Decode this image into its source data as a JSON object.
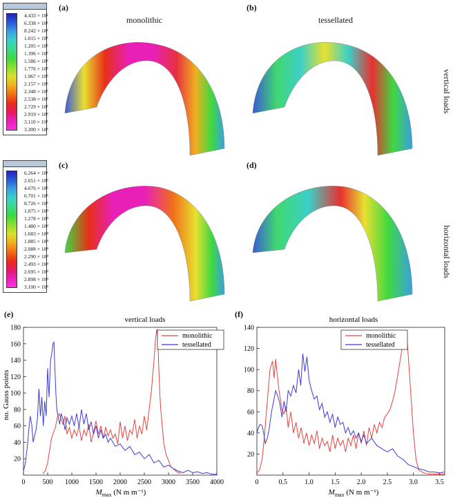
{
  "panels": {
    "a": {
      "letter": "(a)",
      "title": "monolithic"
    },
    "b": {
      "letter": "(b)",
      "title": "tessellated"
    },
    "c": {
      "letter": "(c)"
    },
    "d": {
      "letter": "(d)"
    },
    "e": {
      "letter": "(e)"
    },
    "f": {
      "letter": "(f)"
    }
  },
  "row_labels": {
    "top": "vertical loads",
    "middle": "horizontal loads"
  },
  "colorbar_top": {
    "ticks": [
      "4.433 × 10²",
      "6.338 × 10²",
      "8.242 × 10²",
      "1.015 × 10³",
      "1.205 × 10³",
      "1.396 × 10³",
      "1.586 × 10³",
      "1.776 × 10³",
      "1.967 × 10³",
      "2.157 × 10³",
      "2.348 × 10³",
      "2.538 × 10³",
      "2.729 × 10³",
      "2.919 × 10³",
      "3.110 × 10³",
      "3.300 × 10³"
    ]
  },
  "colorbar_mid": {
    "ticks": [
      "6.264 × 10²",
      "2.651 × 10³",
      "4.676 × 10³",
      "6.701 × 10³",
      "8.726 × 10³",
      "1.075 × 10⁴",
      "1.278 × 10⁴",
      "1.480 × 10⁴",
      "1.683 × 10⁴",
      "1.885 × 10⁴",
      "2.088 × 10⁴",
      "2.290 × 10⁴",
      "2.493 × 10⁴",
      "2.695 × 10⁴",
      "2.898 × 10⁴",
      "3.100 × 10⁴"
    ]
  },
  "colors": {
    "monolithic": "#e8413c",
    "tessellated": "#3a3adb"
  },
  "chart_data": [
    {
      "type": "line",
      "title": "vertical loads",
      "ylabel": "no. Gauss points",
      "xlabel_main": "M",
      "xlabel_sub": "max",
      "xlabel_unit": " (N m m⁻¹)",
      "xlim": [
        0,
        4000
      ],
      "ylim": [
        0,
        180
      ],
      "xticks": [
        0,
        500,
        1000,
        1500,
        2000,
        2500,
        3000,
        3500,
        4000
      ],
      "yticks": [
        20,
        40,
        60,
        80,
        100,
        120,
        140,
        160,
        180
      ],
      "xtick_labels": [
        "0",
        "500",
        "1000",
        "1500",
        "2000",
        "2500",
        "3000",
        "3500",
        "4000"
      ],
      "ytick_labels": [
        "20",
        "40",
        "60",
        "80",
        "100",
        "120",
        "140",
        "160",
        "180"
      ],
      "legend_position": "top-right",
      "series": [
        {
          "name": "monolithic",
          "color": "#e8413c",
          "x": [
            400,
            450,
            500,
            540,
            580,
            620,
            660,
            700,
            740,
            780,
            820,
            860,
            900,
            950,
            1000,
            1050,
            1100,
            1150,
            1200,
            1250,
            1300,
            1350,
            1400,
            1450,
            1500,
            1550,
            1600,
            1650,
            1700,
            1750,
            1800,
            1850,
            1900,
            1950,
            2000,
            2050,
            2100,
            2150,
            2200,
            2250,
            2300,
            2350,
            2400,
            2450,
            2500,
            2550,
            2600,
            2650,
            2700,
            2730,
            2760,
            2780,
            2800,
            2820,
            2840,
            2870,
            2900,
            2950,
            3000,
            3050,
            3100,
            3150,
            3200,
            3250
          ],
          "y": [
            2,
            5,
            15,
            30,
            45,
            52,
            58,
            70,
            75,
            68,
            62,
            72,
            50,
            58,
            45,
            55,
            48,
            60,
            42,
            55,
            48,
            62,
            40,
            52,
            66,
            50,
            60,
            45,
            58,
            48,
            55,
            45,
            50,
            38,
            65,
            45,
            60,
            42,
            55,
            50,
            68,
            45,
            60,
            50,
            72,
            55,
            80,
            105,
            140,
            165,
            178,
            162,
            130,
            100,
            80,
            60,
            40,
            25,
            18,
            10,
            8,
            5,
            3,
            2
          ]
        },
        {
          "name": "tessellated",
          "color": "#3a3adb",
          "x": [
            0,
            40,
            80,
            110,
            140,
            170,
            200,
            230,
            260,
            290,
            320,
            350,
            380,
            410,
            440,
            470,
            500,
            530,
            560,
            590,
            610,
            630,
            650,
            670,
            690,
            720,
            750,
            780,
            820,
            860,
            900,
            950,
            1000,
            1050,
            1100,
            1150,
            1200,
            1250,
            1300,
            1350,
            1400,
            1450,
            1500,
            1550,
            1600,
            1650,
            1700,
            1750,
            1800,
            1900,
            2000,
            2100,
            2200,
            2300,
            2400,
            2500,
            2600,
            2700,
            2800,
            2900,
            3000,
            3100,
            3200,
            3300,
            3400,
            3500,
            3600,
            3700,
            3800,
            3900,
            4000
          ],
          "y": [
            5,
            15,
            35,
            55,
            72,
            62,
            40,
            48,
            55,
            70,
            105,
            72,
            95,
            60,
            90,
            72,
            130,
            95,
            140,
            150,
            160,
            162,
            130,
            100,
            80,
            70,
            62,
            75,
            68,
            55,
            70,
            62,
            72,
            60,
            75,
            58,
            80,
            62,
            75,
            55,
            65,
            50,
            60,
            45,
            55,
            45,
            50,
            40,
            45,
            35,
            38,
            30,
            35,
            25,
            28,
            20,
            25,
            15,
            18,
            10,
            12,
            8,
            5,
            3,
            6,
            3,
            4,
            2,
            3,
            1,
            1
          ]
        }
      ]
    },
    {
      "type": "line",
      "title": "horizontal loads",
      "ylabel": "",
      "xlabel_main": "M",
      "xlabel_sub": "max",
      "xlabel_unit": " (N m m⁻¹)",
      "xlim": [
        0,
        3.6
      ],
      "ylim": [
        0,
        140
      ],
      "xticks": [
        0,
        0.5,
        1.0,
        1.5,
        2.0,
        2.5,
        3.0,
        3.5
      ],
      "yticks": [
        20,
        40,
        60,
        80,
        100,
        120,
        140
      ],
      "xtick_labels": [
        "0",
        "0.5",
        "1.0",
        "1.5",
        "2.0",
        "2.5",
        "3.0",
        "3.5"
      ],
      "ytick_labels": [
        "20",
        "40",
        "60",
        "80",
        "100",
        "120",
        "140"
      ],
      "legend_position": "top-right",
      "series": [
        {
          "name": "monolithic",
          "color": "#e8413c",
          "x": [
            0,
            0.05,
            0.1,
            0.15,
            0.2,
            0.25,
            0.3,
            0.33,
            0.36,
            0.39,
            0.42,
            0.45,
            0.48,
            0.52,
            0.56,
            0.6,
            0.65,
            0.7,
            0.75,
            0.8,
            0.85,
            0.9,
            0.95,
            1.0,
            1.05,
            1.1,
            1.15,
            1.2,
            1.25,
            1.3,
            1.35,
            1.4,
            1.45,
            1.5,
            1.55,
            1.6,
            1.65,
            1.7,
            1.75,
            1.8,
            1.85,
            1.9,
            1.95,
            2.0,
            2.05,
            2.1,
            2.15,
            2.2,
            2.25,
            2.3,
            2.35,
            2.4,
            2.45,
            2.5,
            2.55,
            2.6,
            2.65,
            2.7,
            2.75,
            2.8,
            2.85,
            2.88,
            2.92,
            2.96,
            3.0,
            3.05,
            3.1,
            3.2,
            3.3,
            3.4,
            3.5,
            3.6
          ],
          "y": [
            2,
            5,
            15,
            40,
            70,
            100,
            108,
            92,
            110,
            95,
            82,
            72,
            62,
            58,
            65,
            45,
            60,
            40,
            50,
            35,
            45,
            30,
            40,
            28,
            38,
            30,
            42,
            25,
            35,
            28,
            32,
            22,
            38,
            25,
            35,
            28,
            33,
            22,
            35,
            28,
            38,
            25,
            40,
            30,
            42,
            28,
            45,
            35,
            48,
            40,
            50,
            45,
            55,
            58,
            62,
            70,
            80,
            95,
            110,
            125,
            132,
            128,
            100,
            70,
            40,
            15,
            5,
            2,
            1,
            1,
            1,
            1
          ]
        },
        {
          "name": "tessellated",
          "color": "#3a3adb",
          "x": [
            0,
            0.03,
            0.06,
            0.1,
            0.13,
            0.16,
            0.2,
            0.24,
            0.28,
            0.32,
            0.36,
            0.4,
            0.44,
            0.48,
            0.52,
            0.56,
            0.6,
            0.65,
            0.7,
            0.75,
            0.8,
            0.84,
            0.88,
            0.92,
            0.96,
            1.0,
            1.05,
            1.1,
            1.15,
            1.2,
            1.25,
            1.3,
            1.35,
            1.4,
            1.45,
            1.5,
            1.55,
            1.6,
            1.65,
            1.7,
            1.75,
            1.8,
            1.85,
            1.9,
            1.95,
            2.0,
            2.05,
            2.1,
            2.2,
            2.3,
            2.4,
            2.5,
            2.6,
            2.7,
            2.8,
            2.9,
            3.0,
            3.1,
            3.2,
            3.3,
            3.4,
            3.5,
            3.6
          ],
          "y": [
            40,
            45,
            48,
            47,
            40,
            30,
            35,
            45,
            60,
            70,
            80,
            75,
            68,
            55,
            70,
            60,
            80,
            75,
            85,
            78,
            100,
            85,
            115,
            98,
            112,
            90,
            80,
            72,
            75,
            62,
            68,
            55,
            60,
            50,
            58,
            45,
            55,
            48,
            50,
            40,
            45,
            38,
            42,
            35,
            40,
            32,
            38,
            30,
            35,
            28,
            25,
            22,
            25,
            18,
            15,
            10,
            8,
            6,
            5,
            3,
            3,
            2,
            3
          ]
        }
      ]
    }
  ]
}
